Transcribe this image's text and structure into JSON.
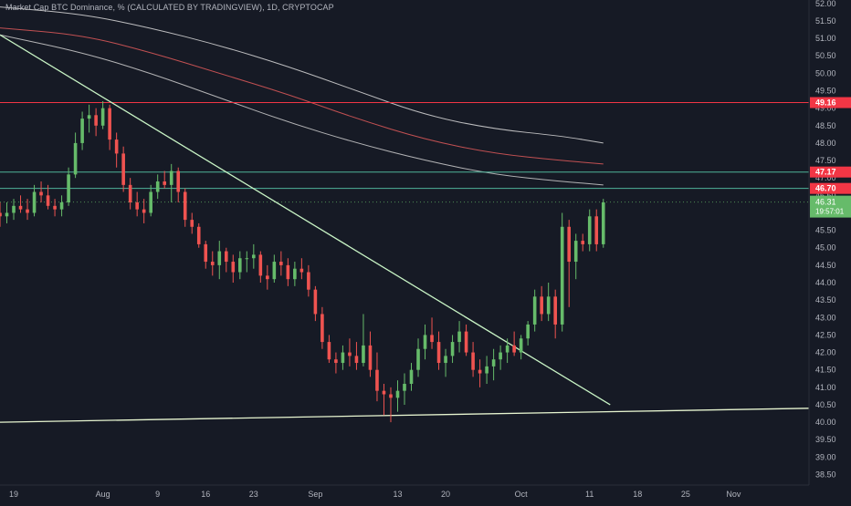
{
  "chart_data": {
    "type": "candlestick",
    "title": "Market Cap BTC Dominance, % (CALCULATED BY TRADINGVIEW), 1D, CRYPTOCAP",
    "y_range": [
      38.2,
      52.1
    ],
    "x_range_days": [
      -2,
      116
    ],
    "y_ticks": [
      38.5,
      39.0,
      39.5,
      40.0,
      40.5,
      41.0,
      41.5,
      42.0,
      42.5,
      43.0,
      43.5,
      44.0,
      44.5,
      45.0,
      45.5,
      46.0,
      46.5,
      47.0,
      47.5,
      48.0,
      48.5,
      49.0,
      49.5,
      50.0,
      50.5,
      51.0,
      51.5,
      52.0
    ],
    "y_tick_labels": [
      "38.50",
      "39.00",
      "39.50",
      "40.00",
      "40.50",
      "41.00",
      "41.50",
      "42.00",
      "42.50",
      "43.00",
      "43.50",
      "44.00",
      "44.50",
      "45.00",
      "45.50",
      "46.00",
      "46.50",
      "47.00",
      "47.50",
      "48.00",
      "48.50",
      "49.00",
      "49.50",
      "50.00",
      "50.50",
      "51.00",
      "51.50",
      "52.00"
    ],
    "x_ticks": [
      {
        "day": 0,
        "label": "19"
      },
      {
        "day": 13,
        "label": "Aug"
      },
      {
        "day": 21,
        "label": "9"
      },
      {
        "day": 28,
        "label": "16"
      },
      {
        "day": 35,
        "label": "23"
      },
      {
        "day": 44,
        "label": "Sep"
      },
      {
        "day": 56,
        "label": "13"
      },
      {
        "day": 63,
        "label": "20"
      },
      {
        "day": 74,
        "label": "Oct"
      },
      {
        "day": 84,
        "label": "11"
      },
      {
        "day": 91,
        "label": "18"
      },
      {
        "day": 98,
        "label": "25"
      },
      {
        "day": 105,
        "label": "Nov"
      }
    ],
    "candles": [
      [
        -2,
        46.0,
        46.3,
        45.6,
        45.9
      ],
      [
        -1,
        45.9,
        46.3,
        45.7,
        46.0
      ],
      [
        0,
        46.0,
        46.4,
        45.8,
        46.2
      ],
      [
        1,
        46.2,
        46.5,
        46.0,
        46.1
      ],
      [
        2,
        46.1,
        46.4,
        45.8,
        46.0
      ],
      [
        3,
        46.0,
        46.8,
        45.9,
        46.6
      ],
      [
        4,
        46.6,
        46.9,
        46.3,
        46.5
      ],
      [
        5,
        46.5,
        46.8,
        46.1,
        46.2
      ],
      [
        6,
        46.2,
        46.4,
        45.9,
        46.1
      ],
      [
        7,
        46.1,
        46.5,
        45.9,
        46.3
      ],
      [
        8,
        46.3,
        47.3,
        46.2,
        47.1
      ],
      [
        9,
        47.1,
        48.3,
        47.0,
        48.0
      ],
      [
        10,
        48.0,
        48.9,
        47.8,
        48.7
      ],
      [
        11,
        48.7,
        49.1,
        48.3,
        48.8
      ],
      [
        12,
        48.8,
        49.0,
        48.2,
        48.5
      ],
      [
        13,
        48.5,
        49.2,
        48.4,
        49.0
      ],
      [
        14,
        49.0,
        49.1,
        47.8,
        48.1
      ],
      [
        15,
        48.1,
        48.3,
        47.3,
        47.7
      ],
      [
        16,
        47.7,
        47.9,
        46.6,
        46.8
      ],
      [
        17,
        46.8,
        47.0,
        46.1,
        46.3
      ],
      [
        18,
        46.3,
        46.6,
        45.9,
        46.1
      ],
      [
        19,
        46.1,
        46.4,
        45.7,
        46.0
      ],
      [
        20,
        46.0,
        46.8,
        45.9,
        46.6
      ],
      [
        21,
        46.6,
        47.1,
        46.4,
        46.9
      ],
      [
        22,
        46.9,
        47.2,
        46.7,
        46.8
      ],
      [
        23,
        46.8,
        47.4,
        46.3,
        47.2
      ],
      [
        24,
        47.2,
        47.3,
        46.3,
        46.6
      ],
      [
        25,
        46.6,
        46.7,
        45.6,
        45.8
      ],
      [
        26,
        45.8,
        46.0,
        45.4,
        45.6
      ],
      [
        27,
        45.6,
        45.7,
        45.0,
        45.1
      ],
      [
        28,
        45.1,
        45.2,
        44.4,
        44.6
      ],
      [
        29,
        44.6,
        44.9,
        44.2,
        44.5
      ],
      [
        30,
        44.5,
        45.2,
        44.1,
        44.9
      ],
      [
        31,
        44.9,
        45.0,
        44.3,
        44.6
      ],
      [
        32,
        44.6,
        44.8,
        44.0,
        44.3
      ],
      [
        33,
        44.3,
        44.9,
        44.1,
        44.7
      ],
      [
        34,
        44.7,
        44.9,
        44.3,
        44.7
      ],
      [
        35,
        44.7,
        45.1,
        44.4,
        44.8
      ],
      [
        36,
        44.8,
        44.9,
        44.0,
        44.2
      ],
      [
        37,
        44.2,
        44.5,
        43.8,
        44.1
      ],
      [
        38,
        44.1,
        44.8,
        44.0,
        44.6
      ],
      [
        39,
        44.6,
        44.9,
        44.2,
        44.5
      ],
      [
        40,
        44.5,
        44.7,
        43.9,
        44.1
      ],
      [
        41,
        44.1,
        44.6,
        43.9,
        44.4
      ],
      [
        42,
        44.4,
        44.7,
        44.1,
        44.3
      ],
      [
        43,
        44.3,
        44.5,
        43.6,
        43.8
      ],
      [
        44,
        43.8,
        43.9,
        42.9,
        43.1
      ],
      [
        45,
        43.1,
        43.3,
        42.1,
        42.3
      ],
      [
        46,
        42.3,
        42.5,
        41.7,
        41.8
      ],
      [
        47,
        41.8,
        42.0,
        41.4,
        41.7
      ],
      [
        48,
        41.7,
        42.2,
        41.5,
        42.0
      ],
      [
        49,
        42.0,
        42.4,
        41.6,
        41.9
      ],
      [
        50,
        41.9,
        42.3,
        41.5,
        41.7
      ],
      [
        51,
        41.7,
        43.1,
        41.6,
        42.2
      ],
      [
        52,
        42.2,
        42.6,
        41.3,
        41.5
      ],
      [
        53,
        41.5,
        42.0,
        40.6,
        40.9
      ],
      [
        54,
        40.9,
        41.1,
        40.2,
        40.8
      ],
      [
        55,
        40.8,
        41.0,
        40.0,
        40.7
      ],
      [
        56,
        40.7,
        41.2,
        40.3,
        40.9
      ],
      [
        57,
        40.9,
        41.4,
        40.5,
        41.1
      ],
      [
        58,
        41.1,
        41.7,
        40.9,
        41.5
      ],
      [
        59,
        41.5,
        42.4,
        41.3,
        42.1
      ],
      [
        60,
        42.1,
        42.8,
        41.8,
        42.5
      ],
      [
        61,
        42.5,
        43.0,
        42.1,
        42.3
      ],
      [
        62,
        42.3,
        42.6,
        41.5,
        41.7
      ],
      [
        63,
        41.7,
        42.1,
        41.3,
        41.9
      ],
      [
        64,
        41.9,
        42.5,
        41.7,
        42.3
      ],
      [
        65,
        42.3,
        42.9,
        42.0,
        42.6
      ],
      [
        66,
        42.6,
        42.8,
        41.9,
        42.0
      ],
      [
        67,
        42.0,
        42.3,
        41.3,
        41.5
      ],
      [
        68,
        41.5,
        41.8,
        41.0,
        41.4
      ],
      [
        69,
        41.4,
        41.9,
        41.1,
        41.6
      ],
      [
        70,
        41.6,
        42.1,
        41.2,
        41.8
      ],
      [
        71,
        41.8,
        42.2,
        41.5,
        42.0
      ],
      [
        72,
        42.0,
        42.4,
        41.7,
        42.2
      ],
      [
        73,
        42.2,
        42.6,
        41.9,
        42.0
      ],
      [
        74,
        42.0,
        42.5,
        41.8,
        42.4
      ],
      [
        75,
        42.4,
        42.9,
        42.2,
        42.8
      ],
      [
        76,
        42.8,
        43.8,
        42.6,
        43.6
      ],
      [
        77,
        43.6,
        43.9,
        42.9,
        43.1
      ],
      [
        78,
        43.1,
        44.0,
        42.9,
        43.6
      ],
      [
        79,
        43.6,
        43.8,
        42.4,
        42.8
      ],
      [
        80,
        42.8,
        46.0,
        42.6,
        45.6
      ],
      [
        81,
        45.6,
        45.8,
        43.3,
        44.6
      ],
      [
        82,
        44.6,
        45.4,
        44.1,
        45.2
      ],
      [
        83,
        45.2,
        45.4,
        44.9,
        45.1
      ],
      [
        84,
        45.1,
        46.1,
        44.9,
        45.9
      ],
      [
        85,
        45.9,
        46.1,
        44.9,
        45.1
      ],
      [
        86,
        45.1,
        46.4,
        45.0,
        46.3
      ]
    ],
    "moving_averages": [
      {
        "color": "#d9d9d9",
        "points": [
          [
            -2,
            51.9
          ],
          [
            10,
            51.7
          ],
          [
            20,
            51.3
          ],
          [
            30,
            50.8
          ],
          [
            40,
            50.2
          ],
          [
            50,
            49.5
          ],
          [
            60,
            48.8
          ],
          [
            70,
            48.4
          ],
          [
            80,
            48.2
          ],
          [
            86,
            48.0
          ]
        ]
      },
      {
        "color": "#e05a5a",
        "points": [
          [
            -2,
            51.3
          ],
          [
            10,
            51.1
          ],
          [
            20,
            50.6
          ],
          [
            30,
            50.0
          ],
          [
            40,
            49.4
          ],
          [
            50,
            48.7
          ],
          [
            60,
            48.1
          ],
          [
            70,
            47.7
          ],
          [
            80,
            47.5
          ],
          [
            86,
            47.4
          ]
        ]
      },
      {
        "color": "#cfcfcf",
        "points": [
          [
            -2,
            51.1
          ],
          [
            10,
            50.6
          ],
          [
            20,
            50.0
          ],
          [
            30,
            49.3
          ],
          [
            40,
            48.6
          ],
          [
            50,
            48.0
          ],
          [
            60,
            47.5
          ],
          [
            70,
            47.1
          ],
          [
            80,
            46.9
          ],
          [
            86,
            46.8
          ]
        ]
      }
    ],
    "trendlines": [
      {
        "color": "#c9f5c6",
        "points": [
          [
            -2,
            51.1
          ],
          [
            87,
            40.5
          ]
        ]
      },
      {
        "color": "#e7f5d0",
        "points": [
          [
            -2,
            40.0
          ],
          [
            116,
            40.4
          ]
        ]
      }
    ],
    "price_lines": [
      {
        "value": 49.16,
        "label": "49.16",
        "color": "#f23645"
      },
      {
        "value": 47.17,
        "label": "47.17",
        "color": "#f23645",
        "line_color": "#4fb39a"
      },
      {
        "value": 46.7,
        "label": "46.70",
        "color": "#f23645",
        "line_color": "#4fb39a"
      }
    ],
    "last_price": {
      "value": 46.31,
      "label": "46.31",
      "sub_label": "19:57:01"
    },
    "colors": {
      "up": "#66bb6a",
      "down": "#ef5350",
      "background": "#161a25",
      "axis_text": "#b2b5be"
    },
    "grid": false,
    "legend": "none"
  }
}
